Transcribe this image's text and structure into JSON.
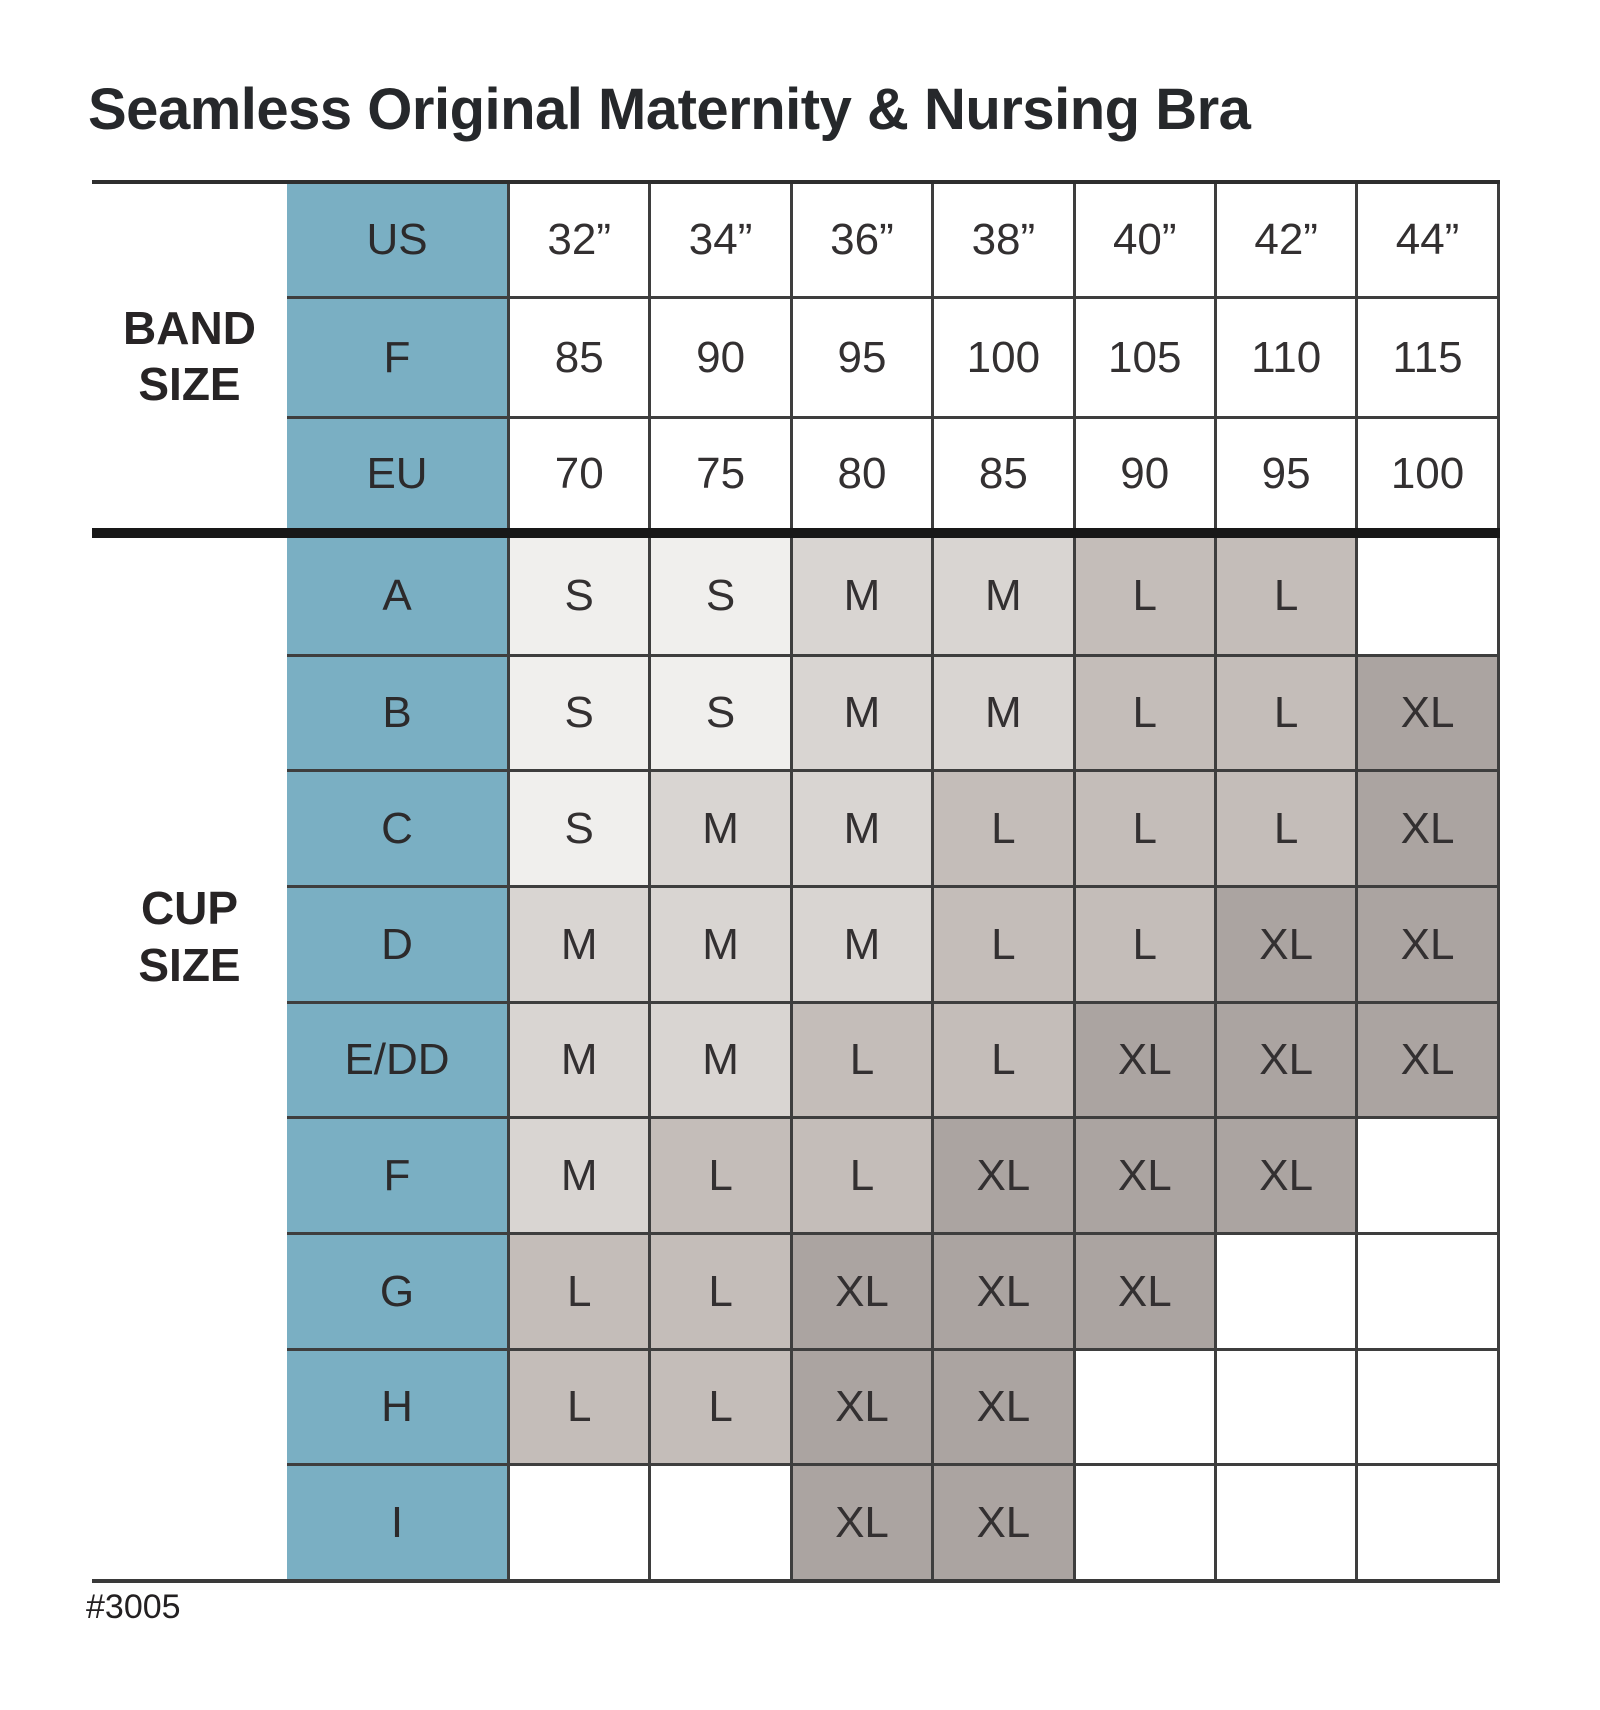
{
  "title": "Seamless Original Maternity & Nursing Bra",
  "footer_style_number": "#3005",
  "colors": {
    "teal_header": "#7AAFC3",
    "shade_s": "#F0EFED",
    "shade_m": "#D9D5D2",
    "shade_l": "#C4BDB9",
    "shade_xl": "#ABA4A1",
    "thick_divider": "#181818",
    "grid_line": "#3e3e3e"
  },
  "chart_data": {
    "type": "table",
    "title": "Seamless Original Maternity & Nursing Bra",
    "band_size": {
      "label": "BAND SIZE",
      "rows": [
        {
          "key": "US",
          "values": [
            "32”",
            "34”",
            "36”",
            "38”",
            "40”",
            "42”",
            "44”"
          ]
        },
        {
          "key": "F",
          "values": [
            "85",
            "90",
            "95",
            "100",
            "105",
            "110",
            "115"
          ]
        },
        {
          "key": "EU",
          "values": [
            "70",
            "75",
            "80",
            "85",
            "90",
            "95",
            "100"
          ]
        }
      ]
    },
    "cup_size": {
      "label": "CUP SIZE",
      "rows": [
        {
          "key": "A",
          "values": [
            "S",
            "S",
            "M",
            "M",
            "L",
            "L",
            ""
          ]
        },
        {
          "key": "B",
          "values": [
            "S",
            "S",
            "M",
            "M",
            "L",
            "L",
            "XL"
          ]
        },
        {
          "key": "C",
          "values": [
            "S",
            "M",
            "M",
            "L",
            "L",
            "L",
            "XL"
          ]
        },
        {
          "key": "D",
          "values": [
            "M",
            "M",
            "M",
            "L",
            "L",
            "XL",
            "XL"
          ]
        },
        {
          "key": "E/DD",
          "values": [
            "M",
            "M",
            "L",
            "L",
            "XL",
            "XL",
            "XL"
          ]
        },
        {
          "key": "F",
          "values": [
            "M",
            "L",
            "L",
            "XL",
            "XL",
            "XL",
            ""
          ]
        },
        {
          "key": "G",
          "values": [
            "L",
            "L",
            "XL",
            "XL",
            "XL",
            "",
            ""
          ]
        },
        {
          "key": "H",
          "values": [
            "L",
            "L",
            "XL",
            "XL",
            "",
            "",
            ""
          ]
        },
        {
          "key": "I",
          "values": [
            "",
            "",
            "XL",
            "XL",
            "",
            "",
            ""
          ]
        }
      ]
    },
    "shading_legend": {
      "S": "#F0EFED",
      "M": "#D9D5D2",
      "L": "#C4BDB9",
      "XL": "#ABA4A1"
    }
  }
}
